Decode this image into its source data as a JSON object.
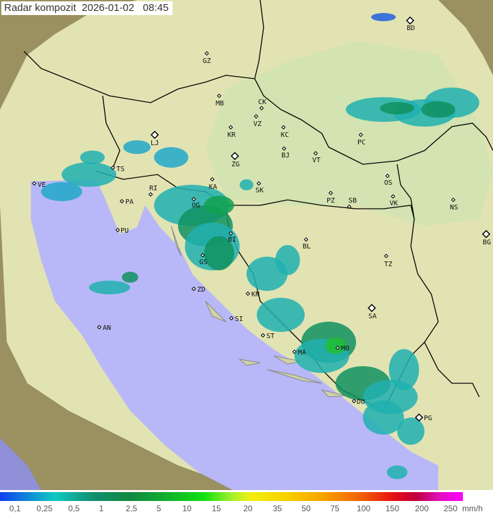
{
  "title": {
    "label": "Radar kompozit",
    "date": "2026-01-02",
    "time": "08:45"
  },
  "legend": {
    "unit": "mm/h",
    "ticks": [
      "0,1",
      "0,25",
      "0,5",
      "1",
      "2,5",
      "5",
      "10",
      "15",
      "20",
      "35",
      "50",
      "75",
      "100",
      "150",
      "200",
      "250"
    ]
  },
  "colors": {
    "sea": "#b8b8f8",
    "land_in_range": "#dfe6b0",
    "outside_range": "#9a9060",
    "rain_light": "#20b0b0",
    "rain_medium": "#109060",
    "rain_heavy": "#20c030",
    "border": "#000000"
  },
  "cities": [
    "GZ",
    "MB",
    "CK",
    "VZ",
    "KR",
    "KC",
    "LJ",
    "ZG",
    "BJ",
    "VT",
    "KA",
    "SK",
    "PZ",
    "SB",
    "OS",
    "VK",
    "NS",
    "BG",
    "PC",
    "BD",
    "TS",
    "VE",
    "RI",
    "PA",
    "PU",
    "OG",
    "GS",
    "BI",
    "BL",
    "ZD",
    "KN",
    "SI",
    "ST",
    "MA",
    "MO",
    "DU",
    "PG",
    "AN",
    "TZ",
    "SA"
  ]
}
